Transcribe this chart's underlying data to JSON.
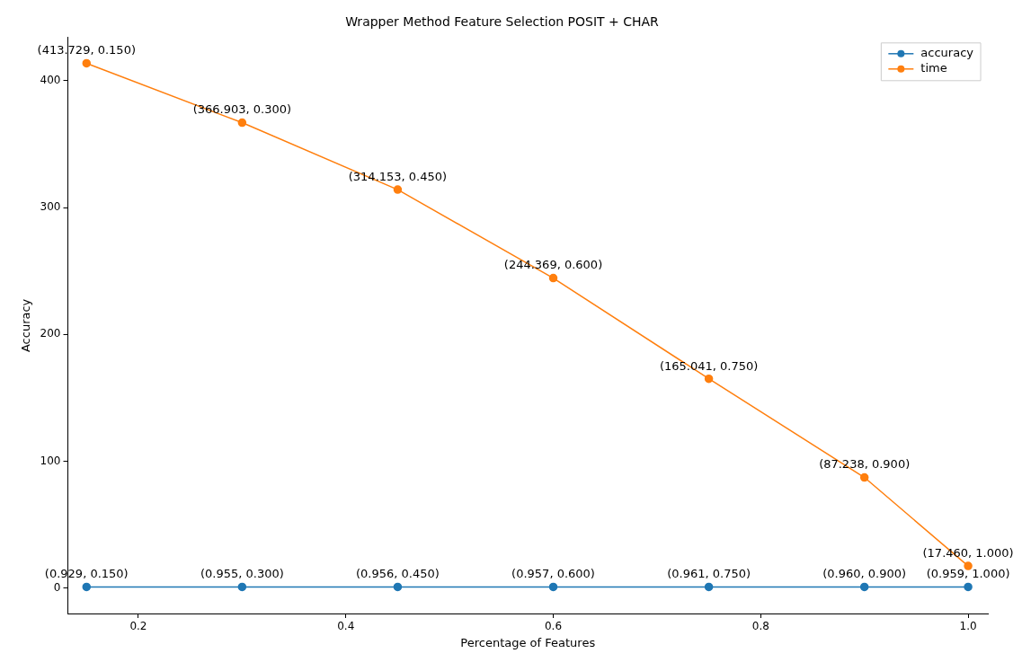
{
  "chart_data": {
    "type": "line",
    "title": "Wrapper Method Feature Selection POSIT + CHAR",
    "xlabel": "Percentage of Features",
    "ylabel": "Accuracy",
    "x": [
      0.15,
      0.3,
      0.45,
      0.6,
      0.75,
      0.9,
      1.0
    ],
    "series": [
      {
        "name": "accuracy",
        "color": "#1f77b4",
        "values": [
          0.929,
          0.955,
          0.956,
          0.957,
          0.961,
          0.96,
          0.959
        ],
        "value_labels": [
          "(0.929, 0.150)",
          "(0.955, 0.300)",
          "(0.956, 0.450)",
          "(0.957, 0.600)",
          "(0.961, 0.750)",
          "(0.960, 0.900)",
          "(0.959, 1.000)"
        ]
      },
      {
        "name": "time",
        "color": "#ff7f0e",
        "values": [
          413.729,
          366.903,
          314.153,
          244.369,
          165.041,
          87.238,
          17.46
        ],
        "value_labels": [
          "(413.729, 0.150)",
          "(366.903, 0.300)",
          "(314.153, 0.450)",
          "(244.369, 0.600)",
          "(165.041, 0.750)",
          "(87.238, 0.900)",
          "(17.460, 1.000)"
        ]
      }
    ],
    "xlim": [
      0.132,
      1.019
    ],
    "xticks": [
      {
        "value": 0.2,
        "label": "0.2"
      },
      {
        "value": 0.4,
        "label": "0.4"
      },
      {
        "value": 0.6,
        "label": "0.6"
      },
      {
        "value": 0.8,
        "label": "0.8"
      },
      {
        "value": 1.0,
        "label": "1.0"
      }
    ],
    "ylim": [
      -20,
      434
    ],
    "yticks": [
      0,
      100,
      200,
      300,
      400
    ],
    "legend": "top right",
    "marker": "circle",
    "line_style": "solid",
    "grid": false
  }
}
